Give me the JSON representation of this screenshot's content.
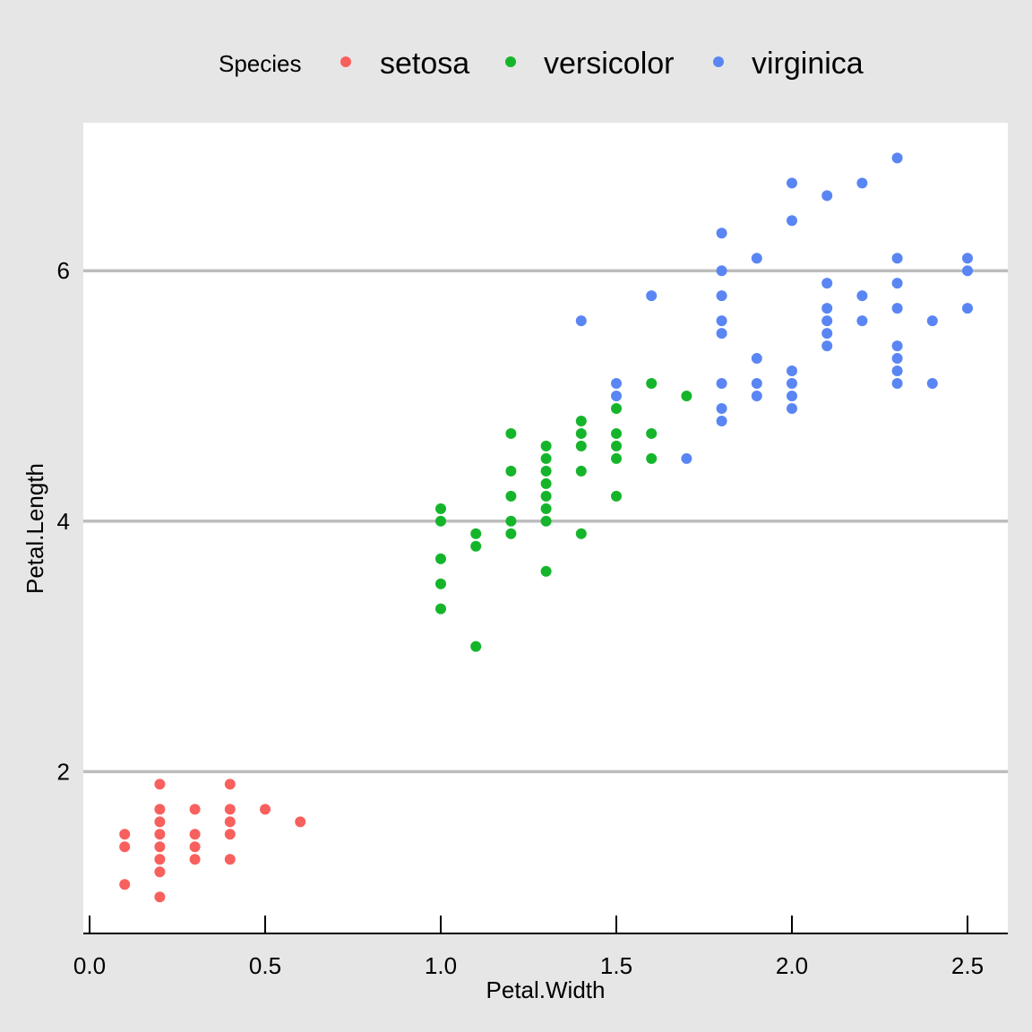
{
  "chart_data": {
    "type": "scatter",
    "xlabel": "Petal.Width",
    "ylabel": "Petal.Length",
    "xlim": [
      0.0,
      2.62
    ],
    "ylim": [
      0.7,
      7.18
    ],
    "x_ticks": [
      0.0,
      0.5,
      1.0,
      1.5,
      2.0,
      2.5
    ],
    "x_tick_labels": [
      "0.0",
      "0.5",
      "1.0",
      "1.5",
      "2.0",
      "2.5"
    ],
    "y_ticks": [
      2,
      4,
      6
    ],
    "y_tick_labels": [
      "2",
      "4",
      "6"
    ],
    "grid": {
      "major_y": true,
      "major_x": false,
      "color": "#bdbdbd"
    },
    "colors": {
      "background": "#e6e6e6",
      "panel": "#ffffff",
      "setosa": "#f8605e",
      "versicolor": "#15b52b",
      "virginica": "#5a86f4"
    },
    "legend": {
      "position": "top",
      "title": "Species",
      "entries": [
        "setosa",
        "versicolor",
        "virginica"
      ]
    },
    "series": [
      {
        "name": "setosa",
        "points": [
          [
            0.1,
            1.1
          ],
          [
            0.1,
            1.4
          ],
          [
            0.1,
            1.5
          ],
          [
            0.2,
            1.0
          ],
          [
            0.2,
            1.2
          ],
          [
            0.2,
            1.3
          ],
          [
            0.2,
            1.4
          ],
          [
            0.2,
            1.5
          ],
          [
            0.2,
            1.6
          ],
          [
            0.2,
            1.7
          ],
          [
            0.2,
            1.9
          ],
          [
            0.3,
            1.3
          ],
          [
            0.3,
            1.4
          ],
          [
            0.3,
            1.5
          ],
          [
            0.3,
            1.7
          ],
          [
            0.4,
            1.3
          ],
          [
            0.4,
            1.5
          ],
          [
            0.4,
            1.6
          ],
          [
            0.4,
            1.7
          ],
          [
            0.4,
            1.9
          ],
          [
            0.5,
            1.7
          ],
          [
            0.6,
            1.6
          ]
        ]
      },
      {
        "name": "versicolor",
        "points": [
          [
            1.0,
            3.3
          ],
          [
            1.0,
            3.5
          ],
          [
            1.0,
            3.7
          ],
          [
            1.0,
            4.0
          ],
          [
            1.0,
            4.1
          ],
          [
            1.1,
            3.0
          ],
          [
            1.1,
            3.8
          ],
          [
            1.1,
            3.9
          ],
          [
            1.2,
            3.9
          ],
          [
            1.2,
            4.0
          ],
          [
            1.2,
            4.2
          ],
          [
            1.2,
            4.4
          ],
          [
            1.2,
            4.7
          ],
          [
            1.3,
            3.6
          ],
          [
            1.3,
            4.0
          ],
          [
            1.3,
            4.1
          ],
          [
            1.3,
            4.2
          ],
          [
            1.3,
            4.3
          ],
          [
            1.3,
            4.4
          ],
          [
            1.3,
            4.5
          ],
          [
            1.3,
            4.6
          ],
          [
            1.4,
            3.9
          ],
          [
            1.4,
            4.4
          ],
          [
            1.4,
            4.6
          ],
          [
            1.4,
            4.7
          ],
          [
            1.4,
            4.8
          ],
          [
            1.5,
            4.2
          ],
          [
            1.5,
            4.5
          ],
          [
            1.5,
            4.6
          ],
          [
            1.5,
            4.7
          ],
          [
            1.5,
            4.9
          ],
          [
            1.6,
            4.5
          ],
          [
            1.6,
            4.7
          ],
          [
            1.6,
            5.1
          ],
          [
            1.7,
            5.0
          ]
        ]
      },
      {
        "name": "virginica",
        "points": [
          [
            1.4,
            5.6
          ],
          [
            1.5,
            5.0
          ],
          [
            1.5,
            5.1
          ],
          [
            1.6,
            5.8
          ],
          [
            1.7,
            4.5
          ],
          [
            1.8,
            4.8
          ],
          [
            1.8,
            4.9
          ],
          [
            1.8,
            5.1
          ],
          [
            1.8,
            5.5
          ],
          [
            1.8,
            5.6
          ],
          [
            1.8,
            5.8
          ],
          [
            1.8,
            6.0
          ],
          [
            1.8,
            6.3
          ],
          [
            1.9,
            5.0
          ],
          [
            1.9,
            5.1
          ],
          [
            1.9,
            5.3
          ],
          [
            1.9,
            6.1
          ],
          [
            2.0,
            4.9
          ],
          [
            2.0,
            5.0
          ],
          [
            2.0,
            5.1
          ],
          [
            2.0,
            5.2
          ],
          [
            2.0,
            6.4
          ],
          [
            2.0,
            6.7
          ],
          [
            2.1,
            5.4
          ],
          [
            2.1,
            5.5
          ],
          [
            2.1,
            5.6
          ],
          [
            2.1,
            5.7
          ],
          [
            2.1,
            5.9
          ],
          [
            2.1,
            6.6
          ],
          [
            2.2,
            5.6
          ],
          [
            2.2,
            5.8
          ],
          [
            2.2,
            6.7
          ],
          [
            2.3,
            5.1
          ],
          [
            2.3,
            5.2
          ],
          [
            2.3,
            5.3
          ],
          [
            2.3,
            5.4
          ],
          [
            2.3,
            5.7
          ],
          [
            2.3,
            5.9
          ],
          [
            2.3,
            6.1
          ],
          [
            2.3,
            6.9
          ],
          [
            2.4,
            5.1
          ],
          [
            2.4,
            5.6
          ],
          [
            2.5,
            5.7
          ],
          [
            2.5,
            6.0
          ],
          [
            2.5,
            6.1
          ]
        ]
      }
    ]
  }
}
